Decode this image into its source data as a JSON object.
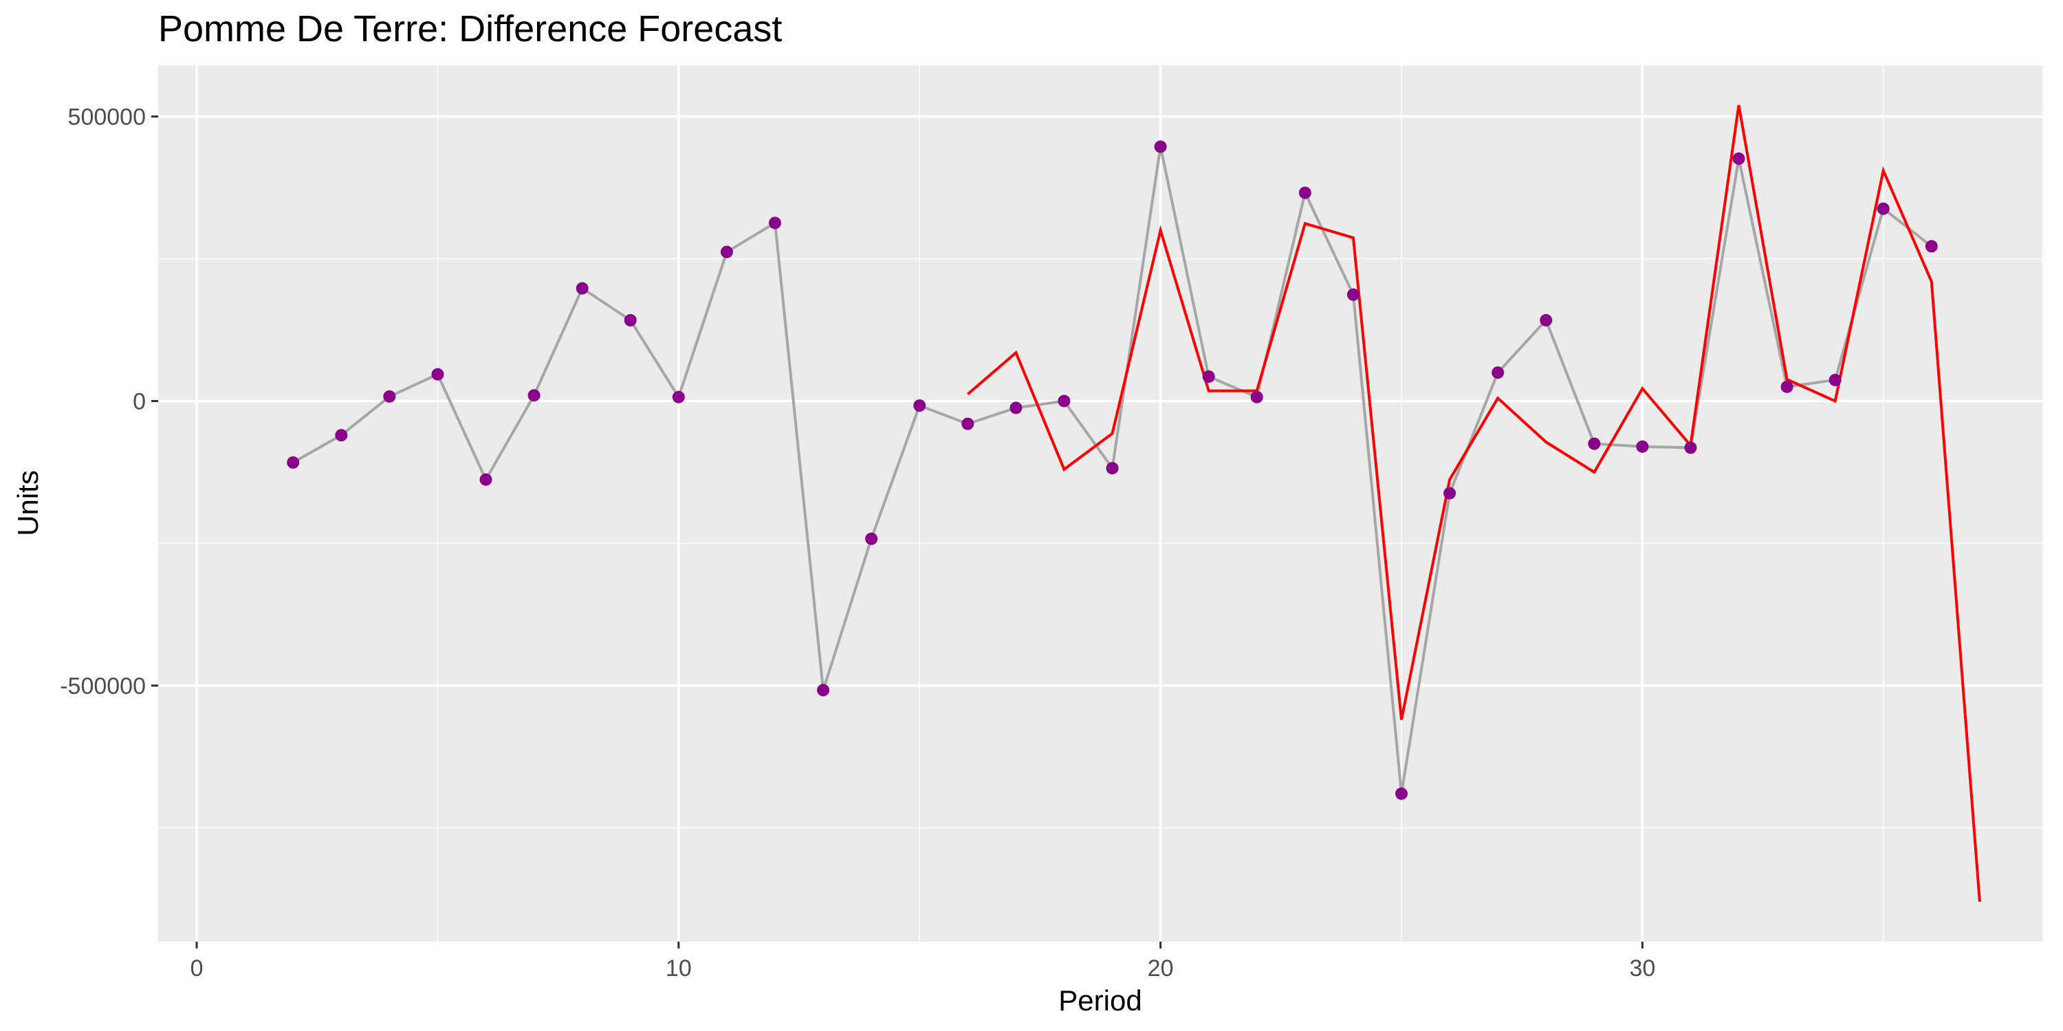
{
  "chart_data": {
    "type": "line",
    "title": "Pomme De Terre: Difference Forecast",
    "xlabel": "Period",
    "ylabel": "Units",
    "xlim": [
      -0.8,
      38.3
    ],
    "ylim": [
      -950000,
      590000
    ],
    "x_ticks": [
      0,
      10,
      20,
      30
    ],
    "x_tick_labels": [
      "0",
      "10",
      "20",
      "30"
    ],
    "x_minor_ticks": [
      5,
      15,
      25,
      35
    ],
    "y_ticks": [
      500000,
      0,
      -500000
    ],
    "y_tick_labels": [
      "500000",
      "0",
      "-500000"
    ],
    "y_minor_ticks": [
      250000,
      -250000,
      -750000
    ],
    "grid": true,
    "legend": "none",
    "series": [
      {
        "role": "actual",
        "color_line": "#a6a6a6",
        "color_point": "#8b008b",
        "x": [
          2,
          3,
          4,
          5,
          6,
          7,
          8,
          9,
          10,
          11,
          12,
          13,
          14,
          15,
          16,
          17,
          18,
          19,
          20,
          21,
          22,
          23,
          24,
          25,
          26,
          27,
          28,
          29,
          30,
          31,
          32,
          33,
          34,
          35,
          36
        ],
        "values": [
          -108000,
          -60000,
          8000,
          47000,
          -138000,
          10000,
          198000,
          142000,
          7000,
          262000,
          313000,
          -508000,
          -242000,
          -8000,
          -40000,
          -12000,
          0,
          -118000,
          447000,
          43000,
          7000,
          366000,
          187000,
          -690000,
          -162000,
          50000,
          142000,
          -75000,
          -80000,
          -82000,
          426000,
          25000,
          37000,
          338000,
          272000
        ]
      },
      {
        "role": "forecast",
        "color_line": "#ff0000",
        "x": [
          16,
          17,
          18,
          19,
          20,
          21,
          22,
          23,
          24,
          25,
          26,
          27,
          28,
          29,
          30,
          31,
          32,
          33,
          34,
          35,
          36,
          37
        ],
        "values": [
          12000,
          85000,
          -120000,
          -57000,
          300000,
          18000,
          18000,
          312000,
          287000,
          -560000,
          -138000,
          5000,
          -72000,
          -125000,
          22000,
          -78000,
          520000,
          38000,
          0,
          405000,
          210000,
          -880000
        ]
      }
    ]
  }
}
